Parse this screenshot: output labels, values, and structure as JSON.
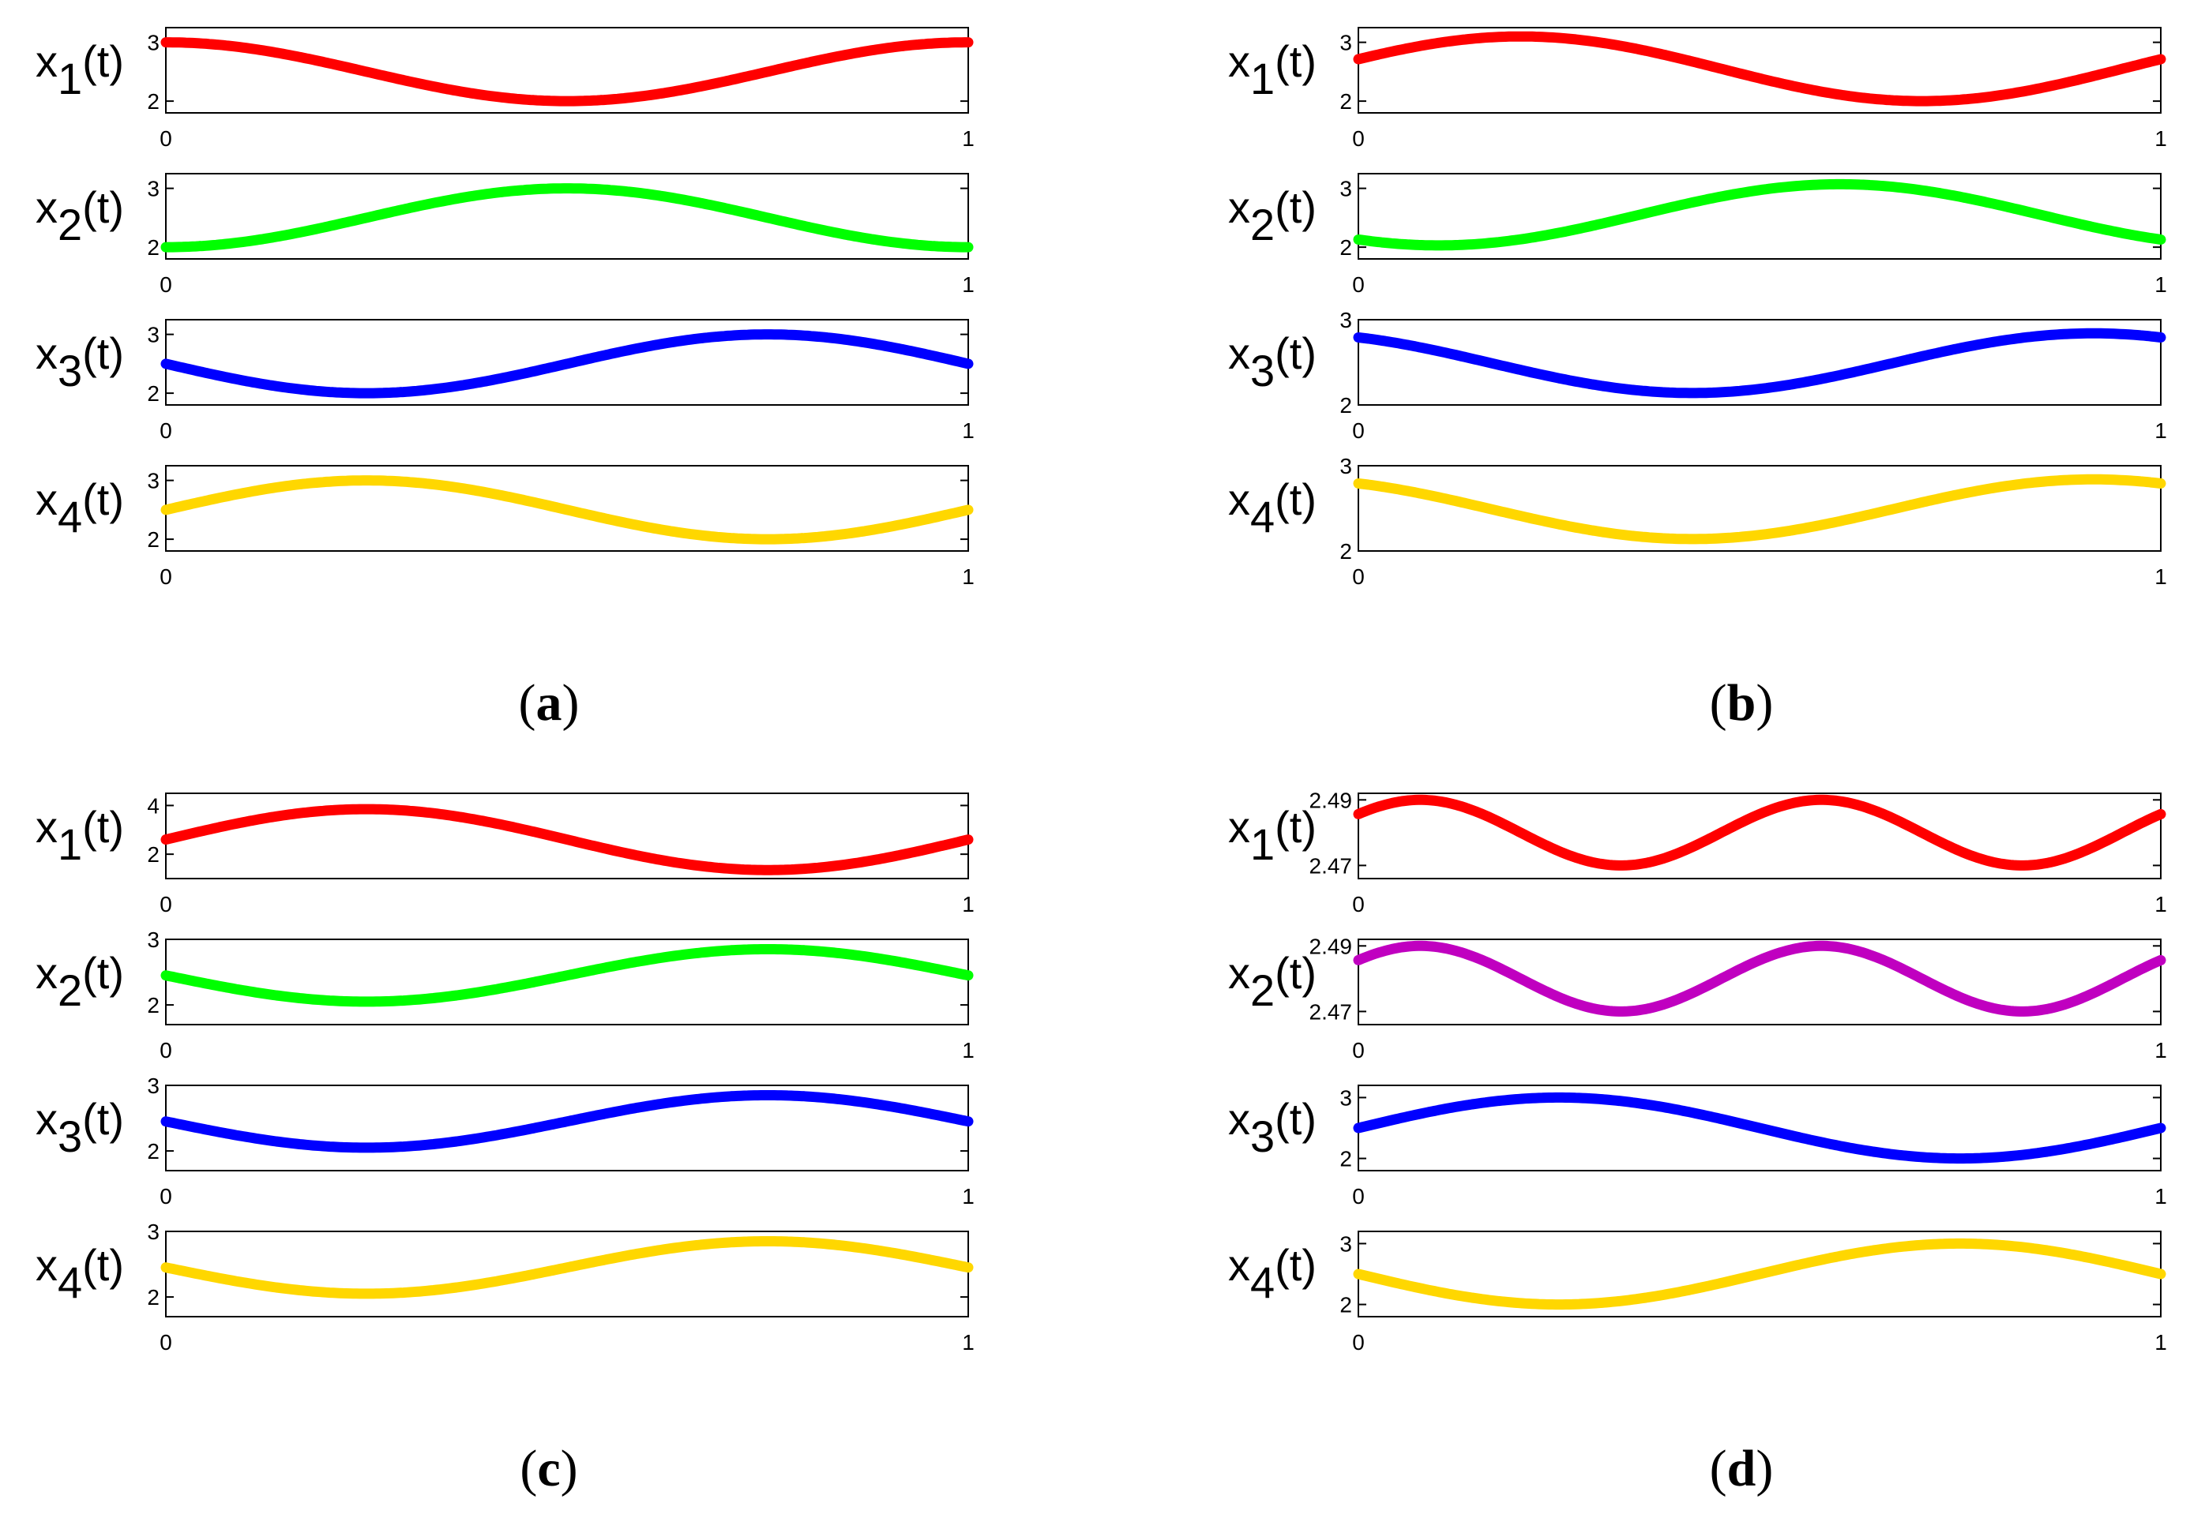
{
  "chart_data": [
    {
      "panel": "a",
      "caption_letter": "a",
      "type": "line",
      "subplots": [
        {
          "ylabel": {
            "var": "x",
            "sub": "1",
            "arg": "(t)"
          },
          "color": "#ff0000",
          "ylim": [
            1.8,
            3.25
          ],
          "yticks": [
            2,
            3
          ],
          "xlim": [
            0,
            1
          ],
          "xticks": [
            "0",
            "1"
          ],
          "mean": 2.5,
          "amp": 0.5,
          "freq": 1,
          "phase": 1.5708
        },
        {
          "ylabel": {
            "var": "x",
            "sub": "2",
            "arg": "(t)"
          },
          "color": "#00ff00",
          "ylim": [
            1.8,
            3.25
          ],
          "yticks": [
            2,
            3
          ],
          "xlim": [
            0,
            1
          ],
          "xticks": [
            "0",
            "1"
          ],
          "mean": 2.5,
          "amp": 0.5,
          "freq": 1,
          "phase": -1.5708
        },
        {
          "ylabel": {
            "var": "x",
            "sub": "3",
            "arg": "(t)"
          },
          "color": "#0000ff",
          "ylim": [
            1.8,
            3.25
          ],
          "yticks": [
            2,
            3
          ],
          "xlim": [
            0,
            1
          ],
          "xticks": [
            "0",
            "1"
          ],
          "mean": 2.5,
          "amp": 0.5,
          "freq": 1,
          "phase": 3.1416
        },
        {
          "ylabel": {
            "var": "x",
            "sub": "4",
            "arg": "(t)"
          },
          "color": "#ffd700",
          "ylim": [
            1.8,
            3.25
          ],
          "yticks": [
            2,
            3
          ],
          "xlim": [
            0,
            1
          ],
          "xticks": [
            "0",
            "1"
          ],
          "mean": 2.5,
          "amp": 0.5,
          "freq": 1,
          "phase": 0
        }
      ]
    },
    {
      "panel": "b",
      "caption_letter": "b",
      "type": "line",
      "subplots": [
        {
          "ylabel": {
            "var": "x",
            "sub": "1",
            "arg": "(t)"
          },
          "color": "#ff0000",
          "ylim": [
            1.8,
            3.25
          ],
          "yticks": [
            2,
            3
          ],
          "xlim": [
            0,
            1
          ],
          "xticks": [
            "0",
            "1"
          ],
          "mean": 2.55,
          "amp": 0.55,
          "freq": 1,
          "phase": 0.3
        },
        {
          "ylabel": {
            "var": "x",
            "sub": "2",
            "arg": "(t)"
          },
          "color": "#00ff00",
          "ylim": [
            1.8,
            3.25
          ],
          "yticks": [
            2,
            3
          ],
          "xlim": [
            0,
            1
          ],
          "xticks": [
            "0",
            "1"
          ],
          "mean": 2.55,
          "amp": 0.52,
          "freq": 1,
          "phase": -2.2
        },
        {
          "ylabel": {
            "var": "x",
            "sub": "3",
            "arg": "(t)"
          },
          "color": "#0000ff",
          "ylim": [
            2.0,
            3.0
          ],
          "yticks": [
            2,
            3
          ],
          "xlim": [
            0,
            1
          ],
          "xticks": [
            "0",
            "1"
          ],
          "mean": 2.49,
          "amp": 0.35,
          "freq": 1,
          "phase": 2.1
        },
        {
          "ylabel": {
            "var": "x",
            "sub": "4",
            "arg": "(t)"
          },
          "color": "#ffd700",
          "ylim": [
            2.0,
            3.0
          ],
          "yticks": [
            2,
            3
          ],
          "xlim": [
            0,
            1
          ],
          "xticks": [
            "0",
            "1"
          ],
          "mean": 2.49,
          "amp": 0.35,
          "freq": 1,
          "phase": 2.1
        }
      ]
    },
    {
      "panel": "c",
      "caption_letter": "c",
      "type": "line",
      "subplots": [
        {
          "ylabel": {
            "var": "x",
            "sub": "1",
            "arg": "(t)"
          },
          "color": "#ff0000",
          "ylim": [
            1.0,
            4.5
          ],
          "yticks": [
            2,
            4
          ],
          "xlim": [
            0,
            1
          ],
          "xticks": [
            "0",
            "1"
          ],
          "mean": 2.6,
          "amp": 1.25,
          "freq": 1,
          "phase": 0
        },
        {
          "ylabel": {
            "var": "x",
            "sub": "2",
            "arg": "(t)"
          },
          "color": "#00ff00",
          "ylim": [
            1.7,
            3.0
          ],
          "yticks": [
            2,
            3
          ],
          "xlim": [
            0,
            1
          ],
          "xticks": [
            "0",
            "1"
          ],
          "mean": 2.45,
          "amp": 0.4,
          "freq": 1,
          "phase": 3.1416
        },
        {
          "ylabel": {
            "var": "x",
            "sub": "3",
            "arg": "(t)"
          },
          "color": "#0000ff",
          "ylim": [
            1.7,
            3.0
          ],
          "yticks": [
            2,
            3
          ],
          "xlim": [
            0,
            1
          ],
          "xticks": [
            "0",
            "1"
          ],
          "mean": 2.45,
          "amp": 0.4,
          "freq": 1,
          "phase": 3.1416
        },
        {
          "ylabel": {
            "var": "x",
            "sub": "4",
            "arg": "(t)"
          },
          "color": "#ffd700",
          "ylim": [
            1.7,
            3.0
          ],
          "yticks": [
            2,
            3
          ],
          "xlim": [
            0,
            1
          ],
          "xticks": [
            "0",
            "1"
          ],
          "mean": 2.45,
          "amp": 0.4,
          "freq": 1,
          "phase": 3.1416
        }
      ]
    },
    {
      "panel": "d",
      "caption_letter": "d",
      "type": "line",
      "subplots": [
        {
          "ylabel": {
            "var": "x",
            "sub": "1",
            "arg": "(t)"
          },
          "color": "#ff0000",
          "ylim": [
            2.466,
            2.492
          ],
          "yticks": [
            2.47,
            2.49
          ],
          "ytick_labels": [
            "2.47",
            "2.49"
          ],
          "xlim": [
            0,
            1
          ],
          "xticks": [
            "0",
            "1"
          ],
          "mean": 2.48,
          "amp": 0.01,
          "freq": 2,
          "phase": 0.6
        },
        {
          "ylabel": {
            "var": "x",
            "sub": "2",
            "arg": "(t)"
          },
          "color": "#c000c0",
          "ylim": [
            2.466,
            2.492
          ],
          "yticks": [
            2.47,
            2.49
          ],
          "ytick_labels": [
            "2.47",
            "2.49"
          ],
          "xlim": [
            0,
            1
          ],
          "xticks": [
            "0",
            "1"
          ],
          "mean": 2.48,
          "amp": 0.01,
          "freq": 2,
          "phase": 0.6
        },
        {
          "ylabel": {
            "var": "x",
            "sub": "3",
            "arg": "(t)"
          },
          "color": "#0000ff",
          "ylim": [
            1.8,
            3.2
          ],
          "yticks": [
            2,
            3
          ],
          "xlim": [
            0,
            1
          ],
          "xticks": [
            "0",
            "1"
          ],
          "mean": 2.5,
          "amp": 0.5,
          "freq": 1,
          "phase": 0
        },
        {
          "ylabel": {
            "var": "x",
            "sub": "4",
            "arg": "(t)"
          },
          "color": "#ffd700",
          "ylim": [
            1.8,
            3.2
          ],
          "yticks": [
            2,
            3
          ],
          "xlim": [
            0,
            1
          ],
          "xticks": [
            "0",
            "1"
          ],
          "mean": 2.5,
          "amp": 0.5,
          "freq": 1,
          "phase": 3.1416
        }
      ]
    }
  ]
}
